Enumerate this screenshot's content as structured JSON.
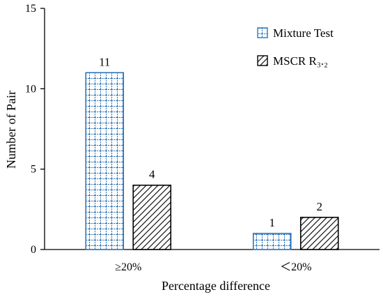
{
  "chart_data": {
    "type": "bar",
    "title": "",
    "xlabel": "Percentage difference",
    "ylabel": "Number of Pair",
    "categories": [
      "≥20%",
      "＜20%"
    ],
    "ylim": [
      0,
      15
    ],
    "yticks": [
      0,
      5,
      10,
      15
    ],
    "grid": false,
    "legend_position": "top-right",
    "series": [
      {
        "name": "Mixture Test",
        "values": [
          11,
          1
        ],
        "pattern": "grid",
        "color": "#2e75b6"
      },
      {
        "name": "MSCR R₃.₂",
        "values": [
          4,
          2
        ],
        "pattern": "diagonal-hatch",
        "color": "#000000"
      }
    ]
  }
}
